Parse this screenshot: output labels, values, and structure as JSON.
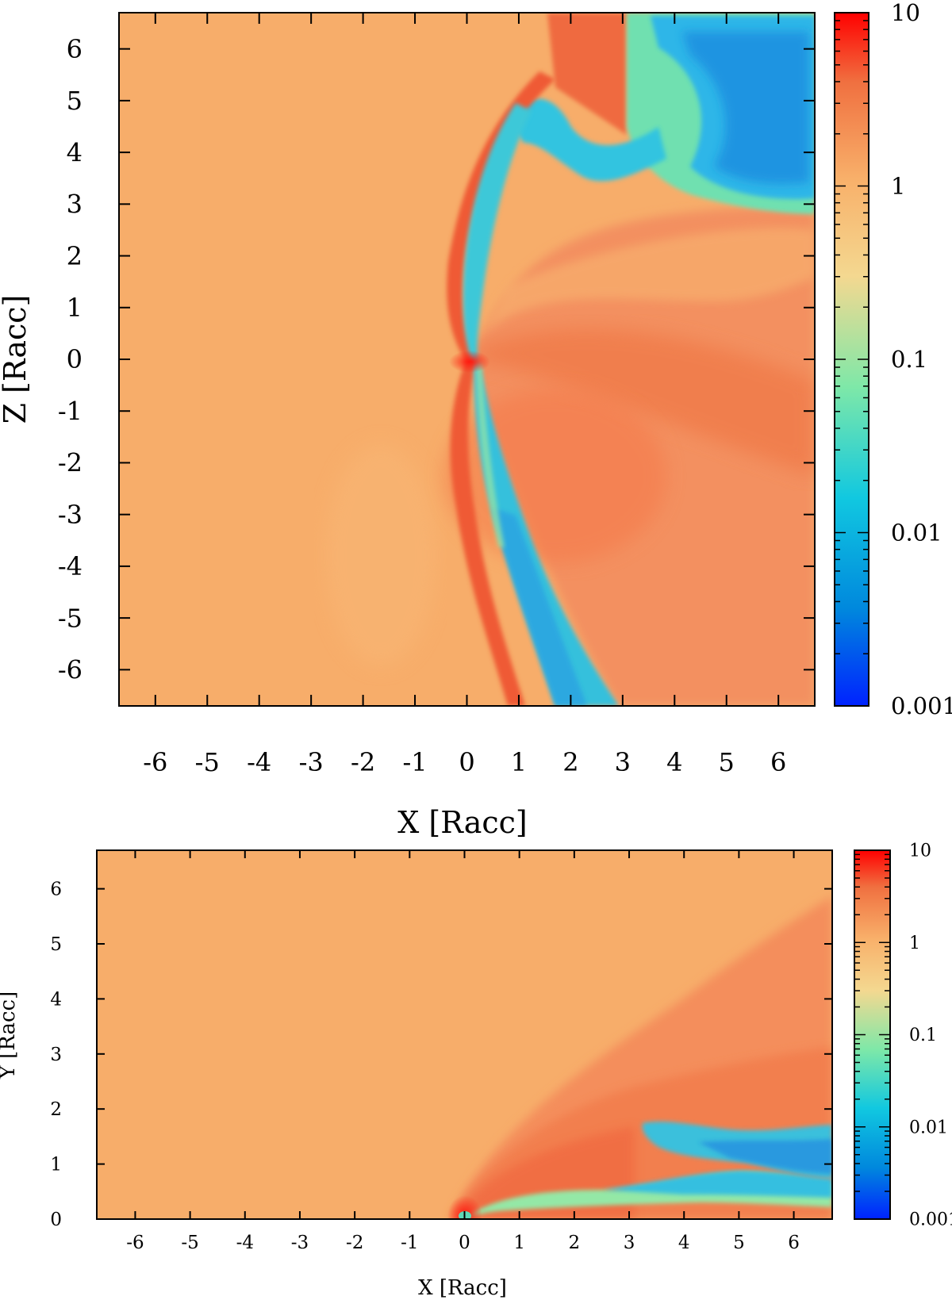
{
  "chart_data": [
    {
      "type": "heatmap",
      "xlabel": "X [Racc]",
      "ylabel": "Z [Racc]",
      "xlim": [
        -6.7,
        6.7
      ],
      "ylim": [
        -6.7,
        6.7
      ],
      "x_ticks": [
        "-6",
        "-5",
        "-4",
        "-3",
        "-2",
        "-1",
        "0",
        "1",
        "2",
        "3",
        "4",
        "5",
        "6"
      ],
      "y_ticks": [
        "6",
        "5",
        "4",
        "3",
        "2",
        "1",
        "0",
        "-1",
        "-2",
        "-3",
        "-4",
        "-5",
        "-6"
      ],
      "colorbar": {
        "scale": "log",
        "range": [
          0.001,
          10
        ],
        "tick_labels": [
          "10",
          "1",
          "0.1",
          "0.01",
          "0.001"
        ],
        "colors": [
          "#0022ff",
          "#0088dd",
          "#11c8e0",
          "#7ee8a8",
          "#f4d890",
          "#f8b06a",
          "#f07040",
          "#ff0000"
        ]
      },
      "features": [
        "bow shock near x = 0 bending to positive x",
        "low-density tail from (0,0) toward (2.5,-6.7)",
        "low-density region upper right, x > 3, z > 3"
      ]
    },
    {
      "type": "heatmap",
      "xlabel": "X [Racc]",
      "ylabel": "Y [Racc]",
      "xlim": [
        -6.7,
        6.7
      ],
      "ylim": [
        0,
        6.7
      ],
      "x_ticks": [
        "-6",
        "-5",
        "-4",
        "-3",
        "-2",
        "-1",
        "0",
        "1",
        "2",
        "3",
        "4",
        "5",
        "6"
      ],
      "y_ticks": [
        "6",
        "5",
        "4",
        "3",
        "2",
        "1",
        "0"
      ],
      "colorbar": {
        "scale": "log",
        "range": [
          0.001,
          10
        ],
        "tick_labels": [
          "10",
          "1",
          "0.1",
          "0.01",
          "0.001"
        ],
        "colors": [
          "#0022ff",
          "#0088dd",
          "#11c8e0",
          "#7ee8a8",
          "#f4d890",
          "#f8b06a",
          "#f07040",
          "#ff0000"
        ]
      },
      "features": [
        "shocked region from origin opening toward upper right",
        "low-density streams near y = 0.3 to 1.7 for x > 3"
      ]
    }
  ]
}
